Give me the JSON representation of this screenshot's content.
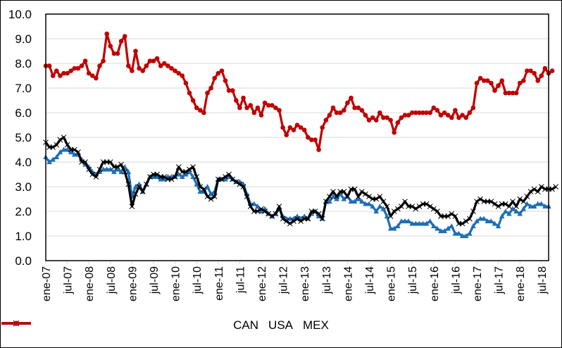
{
  "chart_data": {
    "type": "line",
    "title": "",
    "xlabel": "",
    "ylabel": "",
    "ylim": [
      0,
      10
    ],
    "yticks": [
      "0.0",
      "1.0",
      "2.0",
      "3.0",
      "4.0",
      "5.0",
      "6.0",
      "7.0",
      "8.0",
      "9.0",
      "10.0"
    ],
    "xtick_labels": [
      "ene-07",
      "jul-07",
      "ene-08",
      "jul-08",
      "ene-09",
      "jul-09",
      "ene-10",
      "jul-10",
      "ene-11",
      "jul-11",
      "ene-12",
      "jul-12",
      "ene-13",
      "jul-13",
      "ene-14",
      "jul-14",
      "ene-15",
      "jul-15",
      "ene-16",
      "jul-16",
      "ene-17",
      "jul-17",
      "ene-18",
      "jul-18"
    ],
    "x_start": "ene-07",
    "x_end": "jul-18",
    "frequency": "monthly",
    "grid": true,
    "legend_position": "bottom",
    "series": [
      {
        "name": "CAN",
        "color": "#1f6fb5",
        "marker": "triangle",
        "values": [
          4.2,
          4.0,
          4.1,
          4.2,
          4.4,
          4.5,
          4.5,
          4.4,
          4.3,
          4.3,
          4.1,
          3.9,
          3.8,
          3.6,
          3.5,
          3.6,
          3.7,
          3.7,
          3.7,
          3.6,
          3.7,
          3.6,
          3.8,
          3.6,
          2.6,
          3.0,
          3.1,
          2.8,
          3.1,
          3.4,
          3.4,
          3.4,
          3.3,
          3.3,
          3.4,
          3.4,
          3.4,
          3.5,
          3.4,
          3.5,
          3.6,
          3.4,
          3.1,
          2.8,
          2.8,
          3.0,
          2.7,
          2.8,
          3.3,
          3.3,
          3.3,
          3.4,
          3.3,
          3.2,
          3.2,
          3.1,
          2.7,
          2.3,
          2.3,
          2.2,
          2.0,
          2.1,
          1.9,
          1.8,
          1.9,
          2.1,
          1.8,
          1.7,
          1.7,
          1.7,
          1.8,
          1.7,
          1.8,
          1.7,
          1.9,
          2.0,
          1.8,
          1.7,
          2.4,
          2.4,
          2.6,
          2.5,
          2.7,
          2.5,
          2.6,
          2.4,
          2.4,
          2.5,
          2.4,
          2.3,
          2.3,
          2.2,
          2.0,
          2.2,
          2.1,
          1.8,
          1.3,
          1.3,
          1.4,
          1.6,
          1.6,
          1.6,
          1.5,
          1.5,
          1.5,
          1.5,
          1.5,
          1.6,
          1.4,
          1.3,
          1.2,
          1.2,
          1.3,
          1.4,
          1.1,
          1.1,
          1.0,
          1.0,
          1.1,
          1.4,
          1.6,
          1.7,
          1.7,
          1.6,
          1.6,
          1.5,
          1.4,
          1.8,
          2.0,
          1.9,
          2.1,
          2.0,
          1.9,
          2.1,
          2.3,
          2.2,
          2.2,
          2.3,
          2.3,
          2.2,
          2.2
        ]
      },
      {
        "name": "USA",
        "color": "#000000",
        "marker": "x",
        "values": [
          4.8,
          4.6,
          4.6,
          4.7,
          4.9,
          5.0,
          4.7,
          4.5,
          4.5,
          4.4,
          4.0,
          4.0,
          3.7,
          3.5,
          3.4,
          3.7,
          4.0,
          4.0,
          4.0,
          3.8,
          3.8,
          3.9,
          3.6,
          3.1,
          2.2,
          2.7,
          3.0,
          2.8,
          3.1,
          3.4,
          3.5,
          3.5,
          3.4,
          3.4,
          3.3,
          3.3,
          3.4,
          3.8,
          3.6,
          3.6,
          3.7,
          3.8,
          3.4,
          3.0,
          2.9,
          2.6,
          2.5,
          2.6,
          3.3,
          3.3,
          3.4,
          3.5,
          3.3,
          3.2,
          3.1,
          3.0,
          2.6,
          2.2,
          2.0,
          2.0,
          2.1,
          2.0,
          1.9,
          1.8,
          1.9,
          2.2,
          1.7,
          1.6,
          1.5,
          1.6,
          1.7,
          1.6,
          1.7,
          1.7,
          2.0,
          2.0,
          1.9,
          1.7,
          2.4,
          2.6,
          2.8,
          2.6,
          2.8,
          2.8,
          2.6,
          2.9,
          2.9,
          2.6,
          2.8,
          2.7,
          2.6,
          2.5,
          2.5,
          2.6,
          2.4,
          2.2,
          1.8,
          2.0,
          2.1,
          2.2,
          2.4,
          2.2,
          2.2,
          2.1,
          2.2,
          2.3,
          2.3,
          2.2,
          2.1,
          2.0,
          1.8,
          1.8,
          1.8,
          1.9,
          1.8,
          1.5,
          1.5,
          1.6,
          1.7,
          2.0,
          2.4,
          2.5,
          2.4,
          2.4,
          2.4,
          2.3,
          2.2,
          2.3,
          2.3,
          2.2,
          2.4,
          2.2,
          2.5,
          2.4,
          2.6,
          2.8,
          2.9,
          2.8,
          3.0,
          2.9,
          2.9,
          2.9,
          3.0
        ]
      },
      {
        "name": "MEX",
        "color": "#c00000",
        "marker": "circle",
        "values": [
          7.9,
          7.9,
          7.5,
          7.7,
          7.5,
          7.6,
          7.6,
          7.7,
          7.8,
          7.8,
          7.9,
          8.1,
          7.6,
          7.5,
          7.4,
          7.9,
          8.1,
          9.2,
          8.7,
          8.4,
          8.4,
          8.9,
          9.1,
          7.9,
          7.7,
          8.5,
          7.8,
          7.7,
          7.9,
          8.1,
          8.1,
          8.2,
          7.9,
          8.0,
          7.9,
          7.8,
          7.7,
          7.6,
          7.5,
          7.2,
          6.8,
          6.5,
          6.2,
          6.1,
          6.0,
          6.8,
          7.0,
          7.4,
          7.6,
          7.7,
          7.3,
          6.9,
          6.9,
          6.5,
          6.2,
          6.6,
          6.2,
          6.3,
          6.0,
          6.2,
          5.9,
          6.4,
          6.3,
          6.3,
          6.2,
          6.1,
          5.4,
          5.1,
          5.4,
          5.3,
          5.5,
          5.4,
          5.3,
          5.0,
          4.9,
          4.9,
          4.5,
          5.4,
          5.7,
          5.9,
          6.2,
          6.0,
          6.0,
          6.1,
          6.4,
          6.6,
          6.2,
          6.2,
          6.1,
          5.9,
          5.7,
          5.8,
          5.7,
          6.0,
          5.8,
          5.8,
          5.7,
          5.2,
          5.6,
          5.8,
          5.9,
          5.9,
          6.0,
          6.0,
          6.0,
          6.0,
          6.0,
          6.0,
          6.2,
          6.1,
          5.9,
          6.0,
          5.9,
          5.8,
          6.1,
          5.8,
          5.9,
          5.8,
          6.0,
          6.2,
          7.2,
          7.4,
          7.3,
          7.3,
          7.2,
          6.9,
          7.1,
          7.3,
          6.8,
          6.8,
          6.8,
          6.8,
          7.2,
          7.3,
          7.7,
          7.7,
          7.6,
          7.3,
          7.5,
          7.8,
          7.6,
          7.7
        ]
      }
    ]
  },
  "legend": {
    "items": [
      "CAN",
      "USA",
      "MEX"
    ]
  }
}
